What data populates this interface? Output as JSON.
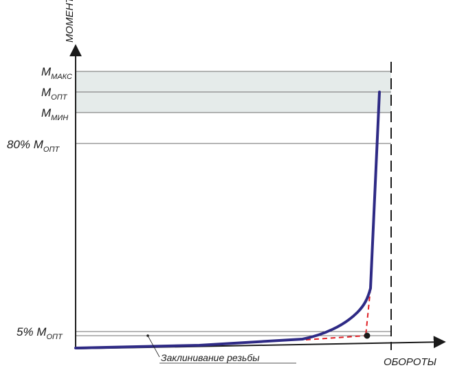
{
  "diagram": {
    "y_axis_title": "МОМЕНТ",
    "x_axis_title": "ОБОРОТЫ",
    "annotation": "Заклинивание резьбы",
    "levels": {
      "m_max": {
        "main": "M",
        "sub": "МАКС"
      },
      "m_opt": {
        "main": "M",
        "sub": "ОПТ"
      },
      "m_min": {
        "main": "M",
        "sub": "МИН"
      },
      "pct80": {
        "prefix": "80% M",
        "sub": "ОПТ"
      },
      "pct5": {
        "prefix": "5% M",
        "sub": "ОПТ"
      }
    },
    "colors": {
      "curve": "#2e2a85",
      "dashed_construction": "#e01e24",
      "tolerance_band": "#e5ebea",
      "axis": "#1a1a1a",
      "grid": "#6e6e6e"
    }
  }
}
